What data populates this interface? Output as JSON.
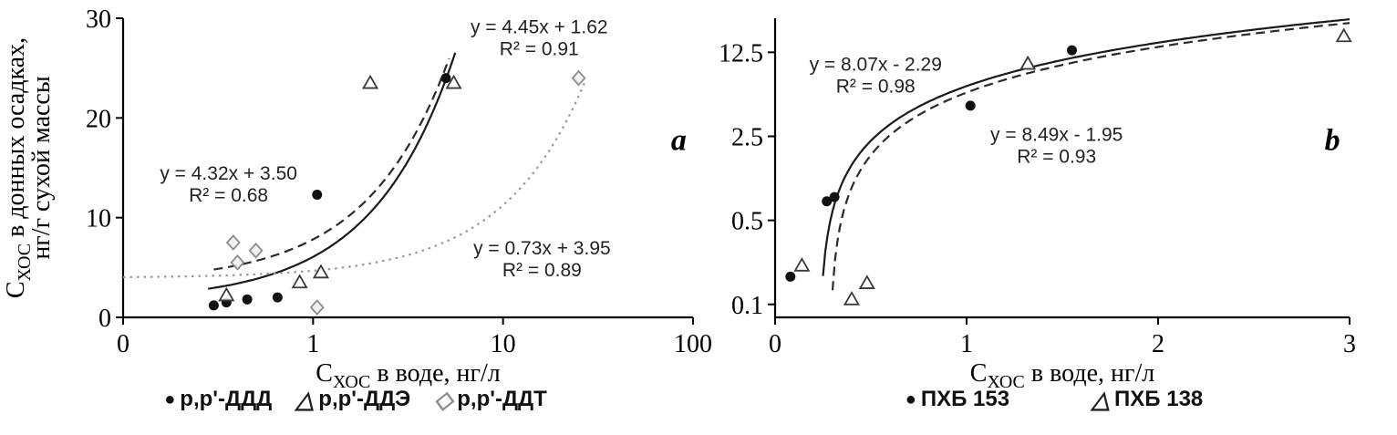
{
  "icons": {
    "filled_circle": "●",
    "open_triangle": "△",
    "open_diamond": "◇"
  },
  "chart_data": [
    {
      "type": "scatter",
      "panel_label": {
        "text": "a",
        "fx": 0.975,
        "fy": 0.44
      },
      "x_scale": "log",
      "y_scale": "linear",
      "xlim": [
        0.1,
        100
      ],
      "ylim": [
        0,
        30
      ],
      "x_ticks": [
        {
          "v": 0.1,
          "label": "0"
        },
        {
          "v": 1,
          "label": "1"
        },
        {
          "v": 10,
          "label": "10"
        },
        {
          "v": 100,
          "label": "100"
        }
      ],
      "y_ticks": [
        {
          "v": 0,
          "label": "0"
        },
        {
          "v": 10,
          "label": "10"
        },
        {
          "v": 20,
          "label": "20"
        },
        {
          "v": 30,
          "label": "30"
        }
      ],
      "xlabel": {
        "main": "С",
        "sub": "ХОС",
        "rest": " в воде, нг/л"
      },
      "ylabel": {
        "line1_main": "С",
        "line1_sub": "ХОС",
        "line1_rest": " в донных осадках,",
        "line2": "нг/г сухой массы"
      },
      "series": [
        {
          "name": "p,p'-ДДД",
          "marker": "filled-circle",
          "points": [
            [
              0.3,
              1.2
            ],
            [
              0.35,
              1.5
            ],
            [
              0.45,
              1.8
            ],
            [
              0.65,
              2.0
            ],
            [
              1.05,
              12.3
            ],
            [
              5.0,
              24.0
            ]
          ],
          "fit": {
            "equation": "y = 4.45x + 1.62",
            "slope": 4.45,
            "intercept": 1.62,
            "r2": 0.91,
            "line": "solid",
            "color": "#1a1a1a",
            "x_range": [
              0.28,
              5.6
            ]
          }
        },
        {
          "name": "p,p'-ДДЭ",
          "marker": "open-triangle",
          "points": [
            [
              0.35,
              2.2
            ],
            [
              0.85,
              3.5
            ],
            [
              1.1,
              4.5
            ],
            [
              2.0,
              23.5
            ],
            [
              5.5,
              23.5
            ]
          ],
          "fit": {
            "equation": "y = 4.32x + 3.50",
            "slope": 4.32,
            "intercept": 3.5,
            "r2": 0.68,
            "line": "dashed",
            "color": "#2a2a2a",
            "x_range": [
              0.3,
              5.2
            ]
          }
        },
        {
          "name": "p,p'-ДДТ",
          "marker": "open-diamond",
          "points": [
            [
              0.38,
              7.5
            ],
            [
              0.4,
              5.5
            ],
            [
              0.5,
              6.7
            ],
            [
              1.05,
              1.0
            ],
            [
              25,
              24.0
            ]
          ],
          "fit": {
            "equation": "y = 0.73x + 3.95",
            "slope": 0.73,
            "intercept": 3.95,
            "r2": 0.89,
            "line": "dotted",
            "color": "#999999",
            "x_range": [
              0.1,
              27
            ]
          }
        }
      ],
      "annotations": [
        {
          "line1": "y = 4.45x + 1.62",
          "line2": "R² = 0.91",
          "fx": 0.73,
          "fy": 0.05
        },
        {
          "line1": "y = 4.32x + 3.50",
          "line2": "R² = 0.68",
          "fx": 0.185,
          "fy": 0.54
        },
        {
          "line1": "y = 0.73x + 3.95",
          "line2": "R² = 0.89",
          "fx": 0.735,
          "fy": 0.79
        }
      ]
    },
    {
      "type": "scatter",
      "panel_label": {
        "text": "b",
        "fx": 0.97,
        "fy": 0.44
      },
      "x_scale": "linear",
      "y_scale": "log",
      "xlim": [
        0,
        3
      ],
      "ylim": [
        0.078,
        24
      ],
      "x_ticks": [
        {
          "v": 0,
          "label": "0"
        },
        {
          "v": 1,
          "label": "1"
        },
        {
          "v": 2,
          "label": "2"
        },
        {
          "v": 3,
          "label": "3"
        }
      ],
      "y_ticks": [
        {
          "v": 0.1,
          "label": "0.1"
        },
        {
          "v": 0.5,
          "label": "0.5"
        },
        {
          "v": 2.5,
          "label": "2.5"
        },
        {
          "v": 12.5,
          "label": "12.5"
        }
      ],
      "xlabel": {
        "main": "С",
        "sub": "ХОС",
        "rest": " в воде, нг/л"
      },
      "series": [
        {
          "name": "ПХБ 153",
          "marker": "filled-circle",
          "points": [
            [
              0.08,
              0.17
            ],
            [
              0.27,
              0.72
            ],
            [
              0.31,
              0.78
            ],
            [
              1.02,
              4.5
            ],
            [
              1.55,
              13
            ]
          ],
          "fit": {
            "equation": "y = 8.49x - 1.95",
            "slope": 8.49,
            "intercept": -1.95,
            "r2": 0.93,
            "line": "solid",
            "color": "#1a1a1a"
          }
        },
        {
          "name": "ПХБ 138",
          "marker": "open-triangle",
          "points": [
            [
              0.14,
              0.21
            ],
            [
              0.4,
              0.11
            ],
            [
              0.48,
              0.15
            ],
            [
              1.32,
              10
            ],
            [
              2.97,
              17
            ]
          ],
          "fit": {
            "equation": "y = 8.07x - 2.29",
            "slope": 8.07,
            "intercept": -2.29,
            "r2": 0.98,
            "line": "dashed",
            "color": "#2a2a2a"
          }
        }
      ],
      "annotations": [
        {
          "line1": "y = 8.07x - 2.29",
          "line2": "R² = 0.98",
          "fx": 0.175,
          "fy": 0.175
        },
        {
          "line1": "y = 8.49x - 1.95",
          "line2": "R² = 0.93",
          "fx": 0.49,
          "fy": 0.41
        }
      ]
    }
  ]
}
